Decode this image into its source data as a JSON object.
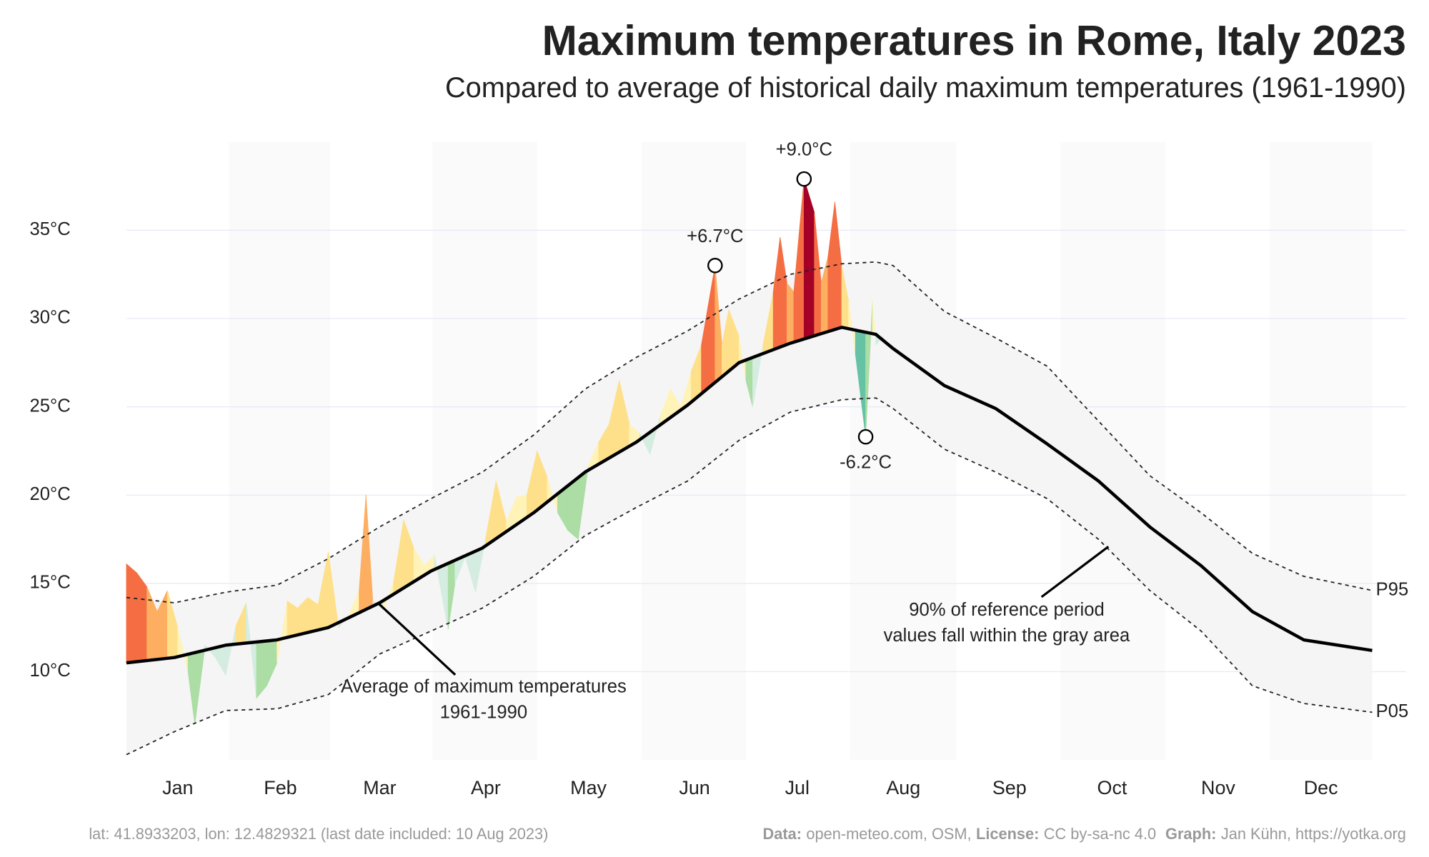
{
  "chart_data": {
    "type": "line",
    "title": "Maximum temperatures in Rome, Italy 2023",
    "subtitle": "Compared to average of historical daily maximum temperatures (1961-1990)",
    "xlim": [
      1,
      365
    ],
    "xticks": [
      {
        "value": 16,
        "label": "Jan"
      },
      {
        "value": 46,
        "label": "Feb"
      },
      {
        "value": 75,
        "label": "Mar"
      },
      {
        "value": 106,
        "label": "Apr"
      },
      {
        "value": 136,
        "label": "May"
      },
      {
        "value": 167,
        "label": "Jun"
      },
      {
        "value": 197,
        "label": "Jul"
      },
      {
        "value": 228,
        "label": "Aug"
      },
      {
        "value": 259,
        "label": "Sep"
      },
      {
        "value": 289,
        "label": "Oct"
      },
      {
        "value": 320,
        "label": "Nov"
      },
      {
        "value": 350,
        "label": "Dec"
      }
    ],
    "ylim": [
      5,
      40
    ],
    "yticks": [
      {
        "value": 10,
        "label": "10°C"
      },
      {
        "value": 15,
        "label": "15°C"
      },
      {
        "value": 20,
        "label": "20°C"
      },
      {
        "value": 25,
        "label": "25°C"
      },
      {
        "value": 30,
        "label": "30°C"
      },
      {
        "value": 35,
        "label": "35°C"
      }
    ],
    "grid": true,
    "series": [
      {
        "role": "mean",
        "color": "#000000",
        "x": [
          1,
          15,
          30,
          45,
          60,
          75,
          90,
          105,
          120,
          135,
          150,
          165,
          180,
          195,
          210,
          220,
          225,
          240,
          255,
          270,
          285,
          300,
          315,
          330,
          345,
          365
        ],
        "values": [
          10.5,
          10.8,
          11.5,
          11.8,
          12.5,
          13.9,
          15.7,
          17.0,
          19.0,
          21.3,
          23.0,
          25.1,
          27.5,
          28.6,
          29.5,
          29.1,
          28.3,
          26.2,
          24.9,
          22.9,
          20.8,
          18.2,
          16.0,
          13.4,
          11.8,
          11.2
        ]
      },
      {
        "role": "upper",
        "name": "P95",
        "color": "#222222",
        "x": [
          1,
          15,
          30,
          45,
          60,
          75,
          90,
          105,
          120,
          135,
          150,
          165,
          180,
          195,
          210,
          220,
          225,
          240,
          255,
          270,
          285,
          300,
          315,
          330,
          345,
          365
        ],
        "values": [
          14.2,
          13.9,
          14.5,
          14.9,
          16.4,
          18.2,
          19.8,
          21.3,
          23.4,
          26.0,
          27.8,
          29.3,
          31.1,
          32.5,
          33.1,
          33.2,
          33.0,
          30.4,
          28.9,
          27.3,
          24.2,
          21.1,
          19.0,
          16.7,
          15.4,
          14.6
        ]
      },
      {
        "role": "lower",
        "name": "P05",
        "color": "#222222",
        "x": [
          1,
          15,
          30,
          45,
          60,
          75,
          90,
          105,
          120,
          135,
          150,
          165,
          180,
          195,
          210,
          220,
          225,
          240,
          255,
          270,
          285,
          300,
          315,
          330,
          345,
          365
        ],
        "values": [
          5.3,
          6.6,
          7.8,
          7.9,
          8.7,
          11.0,
          12.3,
          13.6,
          15.4,
          17.7,
          19.3,
          20.8,
          23.1,
          24.7,
          25.4,
          25.5,
          24.9,
          22.6,
          21.3,
          19.8,
          17.5,
          14.6,
          12.3,
          9.2,
          8.2,
          7.7
        ]
      },
      {
        "role": "observed",
        "x": [
          1,
          4,
          7,
          10,
          13,
          16,
          19,
          21,
          24,
          27,
          30,
          33,
          36,
          39,
          42,
          45,
          48,
          51,
          54,
          57,
          60,
          63,
          66,
          69,
          71,
          73,
          76,
          79,
          82,
          85,
          88,
          91,
          95,
          97,
          100,
          103,
          106,
          109,
          112,
          115,
          118,
          121,
          124,
          127,
          130,
          133,
          136,
          139,
          142,
          145,
          148,
          151,
          154,
          157,
          160,
          163,
          166,
          169,
          173,
          175,
          177,
          180,
          182,
          184,
          187,
          190,
          192,
          194,
          196,
          199,
          202,
          204,
          206,
          208,
          210,
          212,
          214,
          217,
          219,
          220,
          222
        ],
        "values": [
          16.1,
          15.6,
          14.8,
          13.4,
          14.6,
          12.5,
          10.0,
          7.0,
          11.5,
          10.8,
          9.8,
          12.6,
          13.9,
          8.5,
          9.2,
          10.5,
          14.0,
          13.6,
          14.2,
          13.8,
          16.8,
          12.5,
          13.2,
          14.6,
          20.0,
          14.0,
          13.5,
          15.0,
          18.6,
          17.0,
          16.0,
          16.6,
          12.4,
          15.0,
          16.5,
          14.5,
          17.6,
          20.8,
          18.5,
          19.9,
          20.0,
          22.5,
          21.0,
          19.0,
          18.0,
          17.5,
          21.7,
          23.0,
          24.0,
          26.5,
          24.0,
          23.5,
          22.3,
          24.5,
          26.0,
          25.0,
          27.0,
          28.5,
          33.0,
          28.5,
          30.5,
          29.0,
          26.5,
          25.0,
          28.5,
          31.5,
          34.6,
          32.0,
          31.5,
          37.9,
          36.0,
          32.0,
          33.5,
          36.6,
          33.0,
          31.0,
          28.0,
          23.3,
          31.0,
          28.5,
          29.0
        ]
      }
    ],
    "band_color": "#f5f5f5",
    "anomaly_colors": {
      "warm": [
        "#fff3b8",
        "#fee08b",
        "#fdae61",
        "#f46d43",
        "#d73027",
        "#a50026"
      ],
      "cool": [
        "#d4ede0",
        "#abdda4",
        "#66c2a5",
        "#3288bd",
        "#2166ac",
        "#08306b"
      ]
    },
    "annotations": [
      {
        "text": "+9.0°C",
        "x": 199,
        "y": 37.9,
        "position": "above"
      },
      {
        "text": "+6.7°C",
        "x": 173,
        "y": 33.0,
        "position": "above"
      },
      {
        "text": "-6.2°C",
        "x": 217,
        "y": 23.3,
        "position": "below"
      }
    ],
    "callouts": [
      {
        "lines": [
          "Average of maximum temperatures",
          "1961-1990"
        ]
      },
      {
        "lines": [
          "90% of reference period",
          "values fall within the gray area"
        ]
      }
    ],
    "footer": {
      "left": "lat: 41.8933203, lon: 12.4829321 (last date included: 10 Aug 2023)",
      "right": [
        {
          "label": "Data:",
          "text": "open-meteo.com, OSM,"
        },
        {
          "label": "License:",
          "text": "CC by-sa-nc 4.0"
        },
        {
          "label": "Graph:",
          "text": "Jan Kühn, https://yotka.org"
        }
      ]
    }
  }
}
